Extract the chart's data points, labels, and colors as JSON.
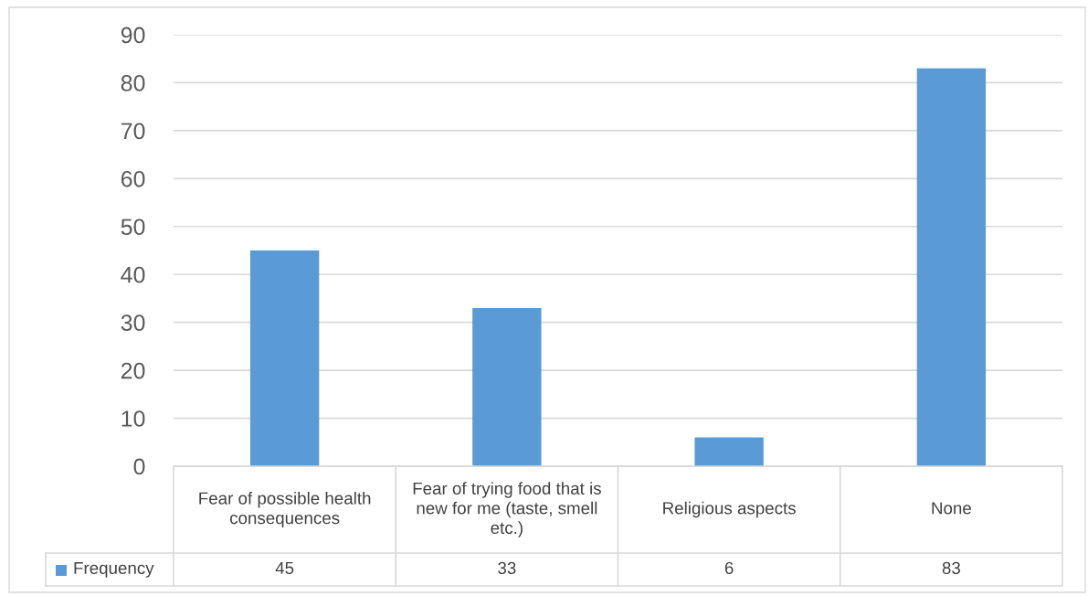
{
  "chart_data": {
    "type": "bar",
    "categories": [
      "Fear of possible health consequences",
      "Fear of trying food that is new for me (taste, smell etc.)",
      "Religious aspects",
      "None"
    ],
    "series": [
      {
        "name": "Frequency",
        "color": "#5b9bd5",
        "values": [
          45,
          33,
          6,
          83
        ]
      }
    ],
    "ylim": [
      0,
      90
    ],
    "yticks": [
      0,
      10,
      20,
      30,
      40,
      50,
      60,
      70,
      80,
      90
    ],
    "grid": "y",
    "legend": "bottom",
    "data_labels": true
  }
}
